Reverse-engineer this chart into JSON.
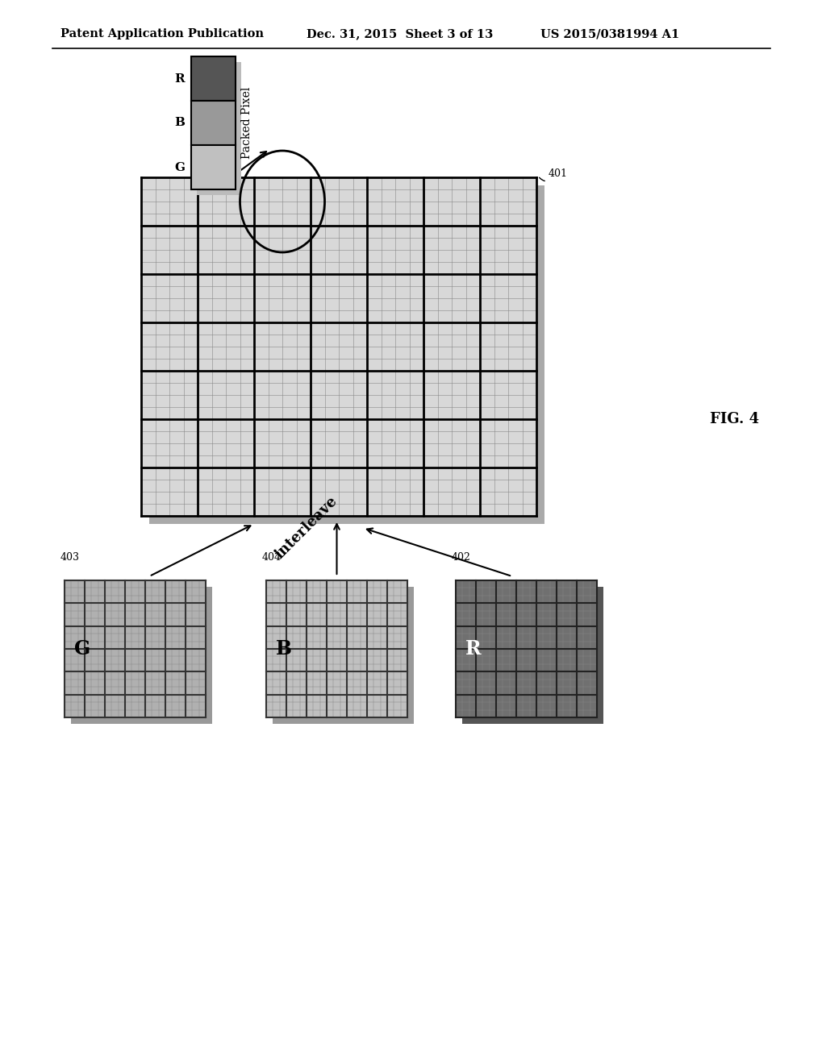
{
  "bg_color": "#ffffff",
  "header_left": "Patent Application Publication",
  "header_mid": "Dec. 31, 2015  Sheet 3 of 13",
  "header_right": "US 2015/0381994 A1",
  "fig_label": "FIG. 4",
  "label_401": "401",
  "label_402": "402",
  "label_403": "403",
  "label_404": "404",
  "packed_pixel_label": "Packed Pixel",
  "interleave_label": "interleave",
  "packed_colors": [
    "#555555",
    "#999999",
    "#c0c0c0"
  ],
  "packed_color_labels": [
    "R",
    "B",
    "G"
  ],
  "main_grid_rows": 7,
  "main_grid_cols": 7,
  "main_grid_color": "#d8d8d8",
  "shadow_color": "#aaaaaa",
  "g_grid_color": "#b0b0b0",
  "b_grid_color": "#c0c0c0",
  "r_grid_color": "#707070"
}
